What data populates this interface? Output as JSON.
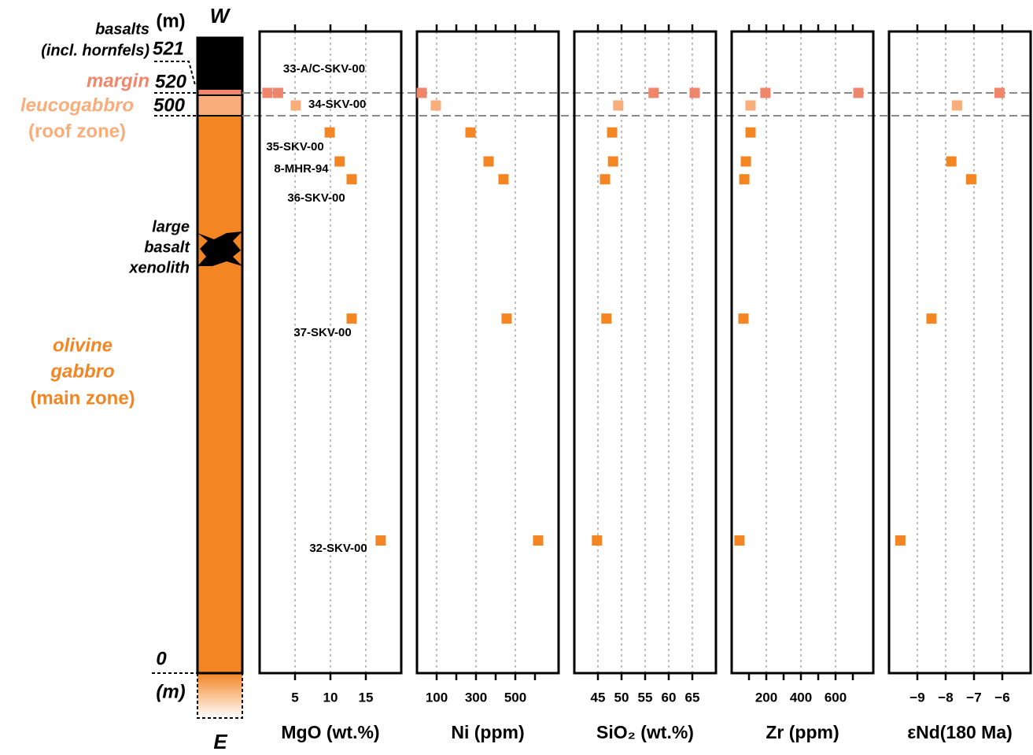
{
  "column": {
    "top_label": "W",
    "bottom_label": "E",
    "unit_top": "(m)",
    "unit_bottom": "(m)",
    "depth_ticks": [
      0,
      500,
      520,
      521
    ],
    "zones": [
      {
        "lines": [
          "basalts",
          "(incl. hornfels)"
        ],
        "color": "#000000"
      },
      {
        "lines": [
          "margin"
        ],
        "color": "#ef866b"
      },
      {
        "lines": [
          "leucogabbro",
          "(roof zone)"
        ],
        "color": "#f8ad7b"
      },
      {
        "lines": [
          "olivine",
          "gabbro",
          "(main zone)"
        ],
        "color": "#f38522"
      }
    ],
    "xenolith": [
      "large",
      "basalt",
      "xenolith"
    ]
  },
  "samples": [
    {
      "name": "33-A/C-SKV-00",
      "height": 520,
      "color": "#ef866b"
    },
    {
      "name": "34-SKV-00",
      "height": 509,
      "color": "#f8ad7b"
    },
    {
      "name": "35-SKV-00",
      "height": 485,
      "color": "#f38522"
    },
    {
      "name": "8-MHR-94",
      "height": 459,
      "color": "#f38522"
    },
    {
      "name": "36-SKV-00",
      "height": 443,
      "color": "#f38522"
    },
    {
      "name": "37-SKV-00",
      "height": 318,
      "color": "#f38522"
    },
    {
      "name": "32-SKV-00",
      "height": 119,
      "color": "#f38522"
    }
  ],
  "chart_data": [
    {
      "type": "scatter",
      "xlabel": "MgO (wt.%)",
      "xlim": [
        0,
        20
      ],
      "xticks": [
        5,
        10,
        15
      ],
      "grid": true,
      "values": [
        [
          1.1,
          2.6
        ],
        [
          5.1
        ],
        [
          9.9
        ],
        [
          11.3
        ],
        [
          13
        ],
        [
          13
        ],
        [
          17.1
        ]
      ]
    },
    {
      "type": "scatter",
      "xlabel": "Ni (ppm)",
      "xlim": [
        0,
        720
      ],
      "xticks": [
        100,
        300,
        500
      ],
      "minor_xticks": [
        200,
        400,
        600
      ],
      "grid": true,
      "values": [
        [
          24
        ],
        [
          96
        ],
        [
          272
        ],
        [
          364
        ],
        [
          440
        ],
        [
          456
        ],
        [
          616
        ]
      ]
    },
    {
      "type": "scatter",
      "xlabel": "SiO₂ (wt.%)",
      "xlim": [
        40,
        70
      ],
      "xticks": [
        45,
        50,
        55,
        60,
        65
      ],
      "grid": true,
      "values": [
        [
          56.8,
          65.5
        ],
        [
          49.3
        ],
        [
          48
        ],
        [
          48.2
        ],
        [
          46.5
        ],
        [
          46.8
        ],
        [
          44.8
        ]
      ]
    },
    {
      "type": "scatter",
      "xlabel": "Zr (ppm)",
      "xlim": [
        0,
        818
      ],
      "xticks": [
        200,
        400,
        600
      ],
      "minor_xticks": [
        100,
        300,
        500,
        700
      ],
      "grid": true,
      "values": [
        [
          195,
          732
        ],
        [
          109
        ],
        [
          109
        ],
        [
          82
        ],
        [
          73
        ],
        [
          68
        ],
        [
          45
        ]
      ]
    },
    {
      "type": "scatter",
      "xlabel": "εNd(180 Ma)",
      "xlim": [
        -10,
        -5
      ],
      "xticks": [
        {
          "value": -9,
          "label": "−9"
        },
        {
          "value": -8,
          "label": "−8"
        },
        {
          "value": -7,
          "label": "−7"
        },
        {
          "value": -6,
          "label": "−6"
        }
      ],
      "grid": true,
      "values": [
        [
          -6.1
        ],
        [
          -7.6
        ],
        null,
        [
          -7.8
        ],
        [
          -7.1
        ],
        [
          -8.5
        ],
        [
          -9.6
        ]
      ]
    }
  ]
}
